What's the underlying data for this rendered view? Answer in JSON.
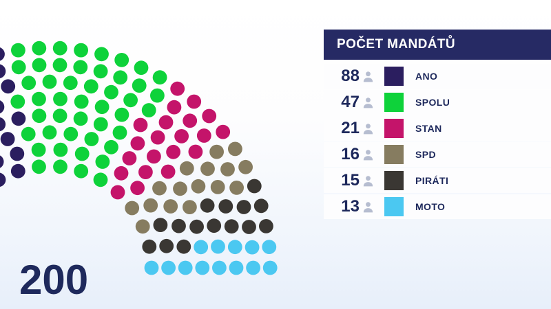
{
  "chart_data": {
    "type": "parliament",
    "title": "POČET MANDÁTŮ",
    "total_seats": 200,
    "legend_position": "right",
    "rows_of_seats": 8,
    "angle_span_degrees": 180,
    "left_side_clipped": true,
    "series": [
      {
        "party": "ANO",
        "seats": 88,
        "color": "#2b1e5f"
      },
      {
        "party": "SPOLU",
        "seats": 47,
        "color": "#0ed23a"
      },
      {
        "party": "STAN",
        "seats": 21,
        "color": "#c4146a"
      },
      {
        "party": "SPD",
        "seats": 16,
        "color": "#867c60"
      },
      {
        "party": "PIRÁTI",
        "seats": 15,
        "color": "#3a3733"
      },
      {
        "party": "MOTO",
        "seats": 13,
        "color": "#4bc8f1"
      }
    ]
  },
  "legend": {
    "header_bg": "#262a64",
    "header_text_color": "#ffffff",
    "row_bg": "#fdfdfe",
    "person_icon": "person-icon",
    "person_icon_color": "#b6bdd0"
  },
  "colors": {
    "text_navy": "#1e295c",
    "background_top": "#ffffff",
    "background_bottom": "#e7effa"
  }
}
